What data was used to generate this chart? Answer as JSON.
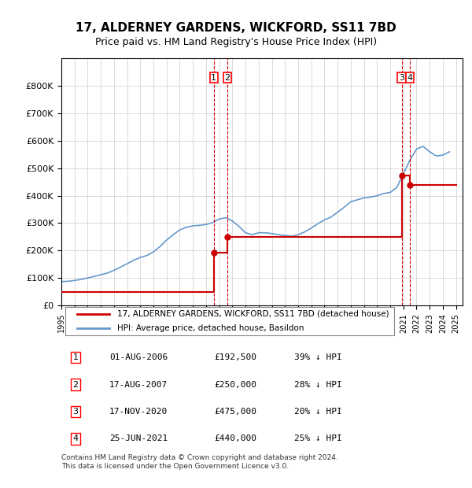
{
  "title": "17, ALDERNEY GARDENS, WICKFORD, SS11 7BD",
  "subtitle": "Price paid vs. HM Land Registry's House Price Index (HPI)",
  "ylabel": "",
  "xlabel": "",
  "ylim": [
    0,
    900000
  ],
  "yticks": [
    0,
    100000,
    200000,
    300000,
    400000,
    500000,
    600000,
    700000,
    800000
  ],
  "ytick_labels": [
    "£0",
    "£100K",
    "£200K",
    "£300K",
    "£400K",
    "£500K",
    "£600K",
    "£700K",
    "£800K"
  ],
  "xlim_start": 1995.0,
  "xlim_end": 2025.5,
  "hpi_color": "#6699cc",
  "price_color": "#cc0000",
  "sale_dates": [
    2006.583,
    2007.625,
    2020.875,
    2021.486
  ],
  "sale_prices": [
    192500,
    250000,
    475000,
    440000
  ],
  "sale_labels": [
    "1",
    "2",
    "3",
    "4"
  ],
  "sale_date_strs": [
    "01-AUG-2006",
    "17-AUG-2007",
    "17-NOV-2020",
    "25-JUN-2021"
  ],
  "sale_price_strs": [
    "£192,500",
    "£250,000",
    "£475,000",
    "£440,000"
  ],
  "sale_hpi_strs": [
    "39% ↓ HPI",
    "28% ↓ HPI",
    "20% ↓ HPI",
    "25% ↓ HPI"
  ],
  "legend_label_price": "17, ALDERNEY GARDENS, WICKFORD, SS11 7BD (detached house)",
  "legend_label_hpi": "HPI: Average price, detached house, Basildon",
  "footnote": "Contains HM Land Registry data © Crown copyright and database right 2024.\nThis data is licensed under the Open Government Licence v3.0.",
  "hpi_x": [
    1995.0,
    1995.5,
    1996.0,
    1996.5,
    1997.0,
    1997.5,
    1998.0,
    1998.5,
    1999.0,
    1999.5,
    2000.0,
    2000.5,
    2001.0,
    2001.5,
    2002.0,
    2002.5,
    2003.0,
    2003.5,
    2004.0,
    2004.5,
    2005.0,
    2005.5,
    2006.0,
    2006.5,
    2007.0,
    2007.5,
    2008.0,
    2008.5,
    2009.0,
    2009.5,
    2010.0,
    2010.5,
    2011.0,
    2011.5,
    2012.0,
    2012.5,
    2013.0,
    2013.5,
    2014.0,
    2014.5,
    2015.0,
    2015.5,
    2016.0,
    2016.5,
    2017.0,
    2017.5,
    2018.0,
    2018.5,
    2019.0,
    2019.5,
    2020.0,
    2020.5,
    2021.0,
    2021.5,
    2022.0,
    2022.5,
    2023.0,
    2023.5,
    2024.0,
    2024.5
  ],
  "hpi_y": [
    87000,
    88000,
    91000,
    95000,
    100000,
    106000,
    112000,
    118000,
    128000,
    140000,
    152000,
    165000,
    175000,
    182000,
    195000,
    215000,
    238000,
    258000,
    275000,
    285000,
    290000,
    292000,
    295000,
    302000,
    315000,
    320000,
    308000,
    288000,
    265000,
    258000,
    265000,
    265000,
    262000,
    258000,
    255000,
    252000,
    258000,
    268000,
    282000,
    298000,
    312000,
    322000,
    340000,
    358000,
    378000,
    385000,
    392000,
    395000,
    400000,
    408000,
    412000,
    430000,
    480000,
    530000,
    570000,
    580000,
    560000,
    545000,
    548000,
    560000
  ],
  "price_x": [
    1995.0,
    2006.583,
    2006.583,
    2007.625,
    2007.625,
    2020.875,
    2020.875,
    2021.486,
    2021.486,
    2025.0
  ],
  "price_y": [
    50000,
    50000,
    192500,
    192500,
    250000,
    250000,
    475000,
    475000,
    440000,
    440000
  ]
}
